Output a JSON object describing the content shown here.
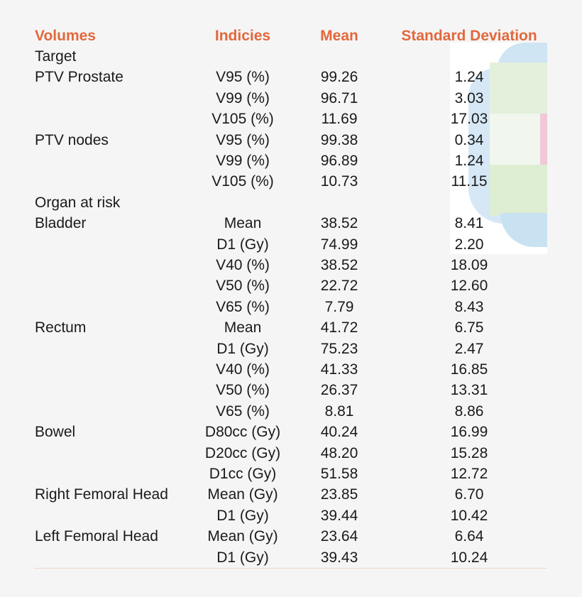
{
  "colors": {
    "header": "#e2683c",
    "text": "#1a1a1a",
    "background": "#f5f5f5",
    "rule": "#f2d7cc"
  },
  "header": {
    "volumes": "Volumes",
    "indices": "Indicies",
    "mean": "Mean",
    "sd": "Standard Deviation"
  },
  "rows": [
    [
      "Target",
      "",
      "",
      ""
    ],
    [
      "PTV Prostate",
      "V95 (%)",
      "99.26",
      "1.24"
    ],
    [
      "",
      "V99 (%)",
      "96.71",
      "3.03"
    ],
    [
      "",
      "V105 (%)",
      "11.69",
      "17.03"
    ],
    [
      "PTV nodes",
      "V95 (%)",
      "99.38",
      "0.34"
    ],
    [
      "",
      "V99 (%)",
      "96.89",
      "1.24"
    ],
    [
      "",
      "V105 (%)",
      "10.73",
      "11.15"
    ],
    [
      "Organ at risk",
      "",
      "",
      ""
    ],
    [
      "Bladder",
      "Mean",
      "38.52",
      "8.41"
    ],
    [
      "",
      "D1 (Gy)",
      "74.99",
      "2.20"
    ],
    [
      "",
      "V40 (%)",
      "38.52",
      "18.09"
    ],
    [
      "",
      "V50 (%)",
      "22.72",
      "12.60"
    ],
    [
      "",
      "V65 (%)",
      "7.79",
      "8.43"
    ],
    [
      "Rectum",
      "Mean",
      "41.72",
      "6.75"
    ],
    [
      "",
      "D1 (Gy)",
      "75.23",
      "2.47"
    ],
    [
      "",
      "V40 (%)",
      "41.33",
      "16.85"
    ],
    [
      "",
      "V50 (%)",
      "26.37",
      "13.31"
    ],
    [
      "",
      "V65 (%)",
      "8.81",
      "8.86"
    ],
    [
      "Bowel",
      "D80cc (Gy)",
      "40.24",
      "16.99"
    ],
    [
      "",
      "D20cc (Gy)",
      "48.20",
      "15.28"
    ],
    [
      "",
      "D1cc (Gy)",
      "51.58",
      "12.72"
    ],
    [
      "Right Femoral Head",
      "Mean (Gy)",
      "23.85",
      "6.70"
    ],
    [
      "",
      "D1 (Gy)",
      "39.44",
      "10.42"
    ],
    [
      "Left Femoral Head",
      "Mean (Gy)",
      "23.64",
      "6.64"
    ],
    [
      "",
      "D1 (Gy)",
      "39.43",
      "10.24"
    ]
  ]
}
